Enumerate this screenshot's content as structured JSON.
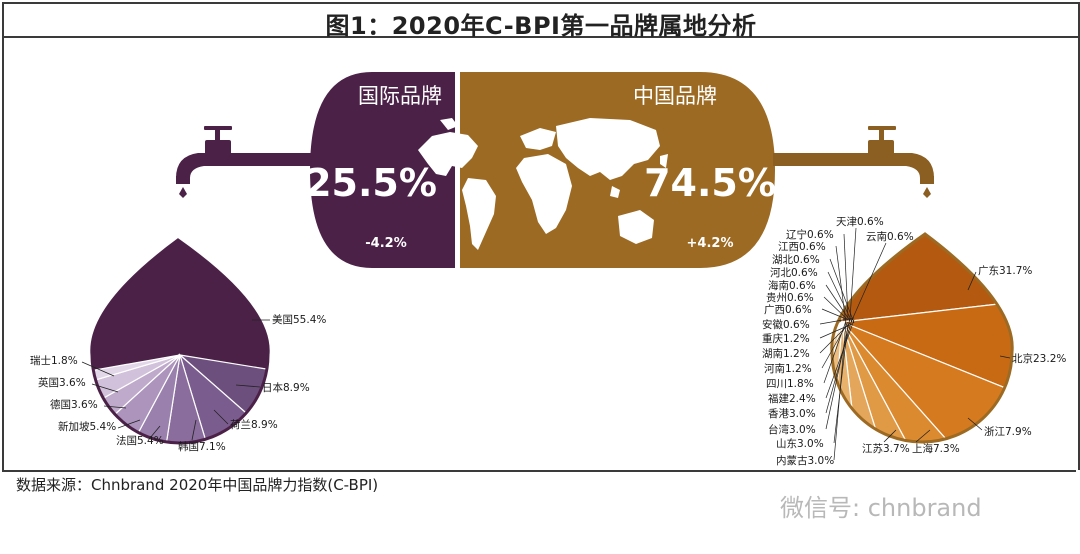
{
  "title": "图1：2020年C-BPI第一品牌属地分析",
  "source": "数据来源：Chnbrand 2020年中国品牌力指数(C-BPI)",
  "watermark": "微信号: chnbrand",
  "international": {
    "label": "国际品牌",
    "value": "25.5%",
    "change": "-4.2%"
  },
  "domestic": {
    "label": "中国品牌",
    "value": "74.5%",
    "change": "+4.2%"
  },
  "colors": {
    "international": "#4b2148",
    "domestic": "#9c6a22",
    "faucet_left": "#4b2148",
    "faucet_right": "#8b5e22"
  },
  "icons": [
    "faucet-icon",
    "world-map-icon"
  ],
  "chart_data": [
    {
      "type": "pie",
      "title": "国际品牌",
      "series": [
        {
          "label": "美国",
          "value": 55.4,
          "text": "美国55.4%"
        },
        {
          "label": "日本",
          "value": 8.9,
          "text": "日本8.9%"
        },
        {
          "label": "荷兰",
          "value": 8.9,
          "text": "荷兰8.9%"
        },
        {
          "label": "韩国",
          "value": 7.1,
          "text": "韩国7.1%"
        },
        {
          "label": "法国",
          "value": 5.4,
          "text": "法国5.4%"
        },
        {
          "label": "新加坡",
          "value": 5.4,
          "text": "新加坡5.4%"
        },
        {
          "label": "德国",
          "value": 3.6,
          "text": "德国3.6%"
        },
        {
          "label": "英国",
          "value": 3.6,
          "text": "英国3.6%"
        },
        {
          "label": "瑞士",
          "value": 1.8,
          "text": "瑞士1.8%"
        }
      ],
      "colors": [
        "#4b2148",
        "#6d4f7e",
        "#7a5c8e",
        "#8a6d9d",
        "#9a80ad",
        "#ac94bc",
        "#bfaacb",
        "#d1c1da",
        "#e2d7e8"
      ]
    },
    {
      "type": "pie",
      "title": "中国品牌",
      "series": [
        {
          "label": "广东",
          "value": 31.7,
          "text": "广东31.7%"
        },
        {
          "label": "北京",
          "value": 23.2,
          "text": "北京23.2%"
        },
        {
          "label": "浙江",
          "value": 7.9,
          "text": "浙江7.9%"
        },
        {
          "label": "上海",
          "value": 7.3,
          "text": "上海7.3%"
        },
        {
          "label": "江苏",
          "value": 3.7,
          "text": "江苏3.7%"
        },
        {
          "label": "内蒙古",
          "value": 3.0,
          "text": "内蒙古3.0%"
        },
        {
          "label": "山东",
          "value": 3.0,
          "text": "山东3.0%"
        },
        {
          "label": "台湾",
          "value": 3.0,
          "text": "台湾3.0%"
        },
        {
          "label": "香港",
          "value": 3.0,
          "text": "香港3.0%"
        },
        {
          "label": "福建",
          "value": 2.4,
          "text": "福建2.4%"
        },
        {
          "label": "四川",
          "value": 1.8,
          "text": "四川1.8%"
        },
        {
          "label": "河南",
          "value": 1.2,
          "text": "河南1.2%"
        },
        {
          "label": "湖南",
          "value": 1.2,
          "text": "湖南1.2%"
        },
        {
          "label": "重庆",
          "value": 1.2,
          "text": "重庆1.2%"
        },
        {
          "label": "安徽",
          "value": 0.6,
          "text": "安徽0.6%"
        },
        {
          "label": "广西",
          "value": 0.6,
          "text": "广西0.6%"
        },
        {
          "label": "贵州",
          "value": 0.6,
          "text": "贵州0.6%"
        },
        {
          "label": "海南",
          "value": 0.6,
          "text": "海南0.6%"
        },
        {
          "label": "河北",
          "value": 0.6,
          "text": "河北0.6%"
        },
        {
          "label": "湖北",
          "value": 0.6,
          "text": "湖北0.6%"
        },
        {
          "label": "江西",
          "value": 0.6,
          "text": "江西0.6%"
        },
        {
          "label": "辽宁",
          "value": 0.6,
          "text": "辽宁0.6%"
        },
        {
          "label": "天津",
          "value": 0.6,
          "text": "天津0.6%"
        },
        {
          "label": "云南",
          "value": 0.6,
          "text": "云南0.6%"
        }
      ],
      "colors": [
        "#9c6a22",
        "#b35a10",
        "#c86a14",
        "#d57a1e",
        "#dc8a30",
        "#e09a46",
        "#e4a65a",
        "#e8b26c",
        "#ecbd7e",
        "#efc78e",
        "#f1cf9c",
        "#f3d6a8",
        "#f4dbb2",
        "#f5e0bb",
        "#f6e4c3",
        "#f7e7c9",
        "#f8ead0",
        "#f8edd5",
        "#f9efd9",
        "#faf1dd",
        "#faf3e1",
        "#fbf5e5",
        "#fbf6e8",
        "#fcf8ec"
      ]
    }
  ]
}
